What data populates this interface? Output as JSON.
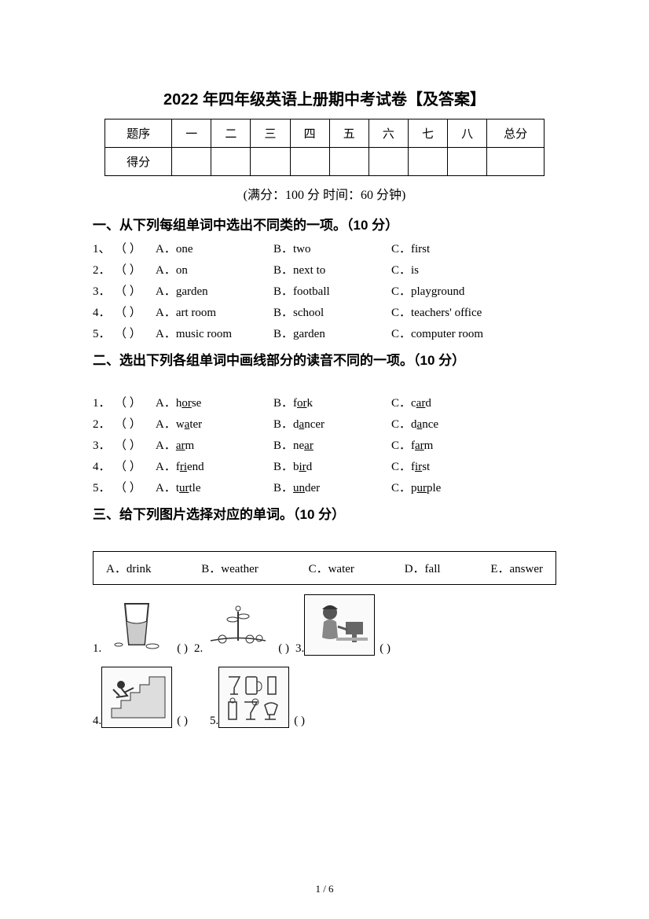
{
  "title": "2022 年四年级英语上册期中考试卷【及答案】",
  "score_table": {
    "row1": [
      "题序",
      "一",
      "二",
      "三",
      "四",
      "五",
      "六",
      "七",
      "八",
      "总分"
    ],
    "row2_label": "得分"
  },
  "meta": "(满分：100 分    时间：60 分钟)",
  "section1": {
    "heading": "一、从下列每组单词中选出不同类的一项。（10 分）",
    "items": [
      {
        "n": "1、",
        "a": "A．one",
        "b": "B．two",
        "c": "C．first"
      },
      {
        "n": "2．",
        "a": "A．on",
        "b": "B．next to",
        "c": "C．is"
      },
      {
        "n": "3．",
        "a": "A．garden",
        "b": "B．football",
        "c": "C．playground"
      },
      {
        "n": "4．",
        "a": "A．art room",
        "b": "B．school",
        "c": "C．teachers' office"
      },
      {
        "n": "5．",
        "a": "A．music room",
        "b": "B．garden",
        "c": "C．computer room"
      }
    ]
  },
  "section2": {
    "heading": "二、选出下列各组单词中画线部分的读音不同的一项。（10 分）",
    "items": [
      {
        "n": "1．",
        "a_pre": "A．h",
        "a_u": "or",
        "a_post": "se",
        "b_pre": "B．f",
        "b_u": "or",
        "b_post": "k",
        "c_pre": "C．c",
        "c_u": "ar",
        "c_post": "d"
      },
      {
        "n": "2．",
        "a_pre": "A．w",
        "a_u": "a",
        "a_post": "ter",
        "b_pre": "B．d",
        "b_u": "a",
        "b_post": "ncer",
        "c_pre": "C．d",
        "c_u": "a",
        "c_post": "nce"
      },
      {
        "n": "3．",
        "a_pre": "A．",
        "a_u": "ar",
        "a_post": "m",
        "b_pre": "B．ne",
        "b_u": "ar",
        "b_post": "",
        "c_pre": "C．f",
        "c_u": "ar",
        "c_post": "m"
      },
      {
        "n": "4．",
        "a_pre": "A．f",
        "a_u": "ri",
        "a_post": "end",
        "b_pre": "B．b",
        "b_u": "ir",
        "b_post": "d",
        "c_pre": "C．f",
        "c_u": "ir",
        "c_post": "st"
      },
      {
        "n": "5．",
        "a_pre": "A．t",
        "a_u": "ur",
        "a_post": "tle",
        "b_pre": "B．",
        "b_u": "un",
        "b_post": "der",
        "c_pre": "C．p",
        "c_u": "ur",
        "c_post": "ple"
      }
    ]
  },
  "section3": {
    "heading": "三、给下列图片选择对应的单词。（10 分）",
    "word_bank": [
      "A．drink",
      "B．weather",
      "C．water",
      "D．fall",
      "E．answer"
    ],
    "blank": "(        )"
  },
  "footer": "1 / 6"
}
